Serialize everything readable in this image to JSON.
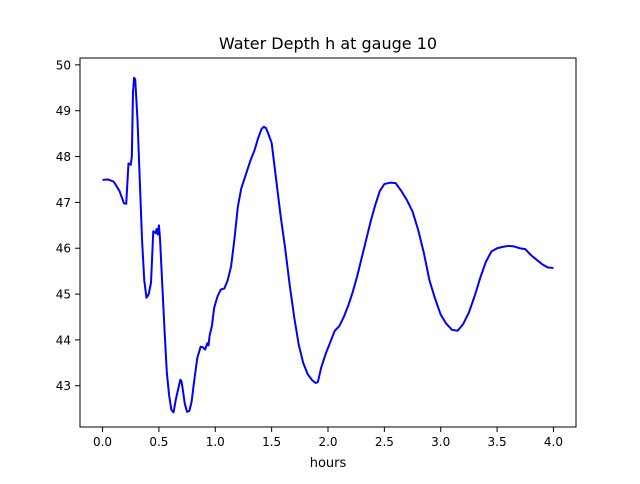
{
  "chart_data": {
    "type": "line",
    "title": "Water Depth h at gauge 10",
    "xlabel": "hours",
    "ylabel": "",
    "xlim": [
      -0.2,
      4.2
    ],
    "ylim": [
      42.1,
      50.15
    ],
    "x_ticks": [
      "0.0",
      "0.5",
      "1.0",
      "1.5",
      "2.0",
      "2.5",
      "3.0",
      "3.5",
      "4.0"
    ],
    "y_ticks": [
      "43",
      "44",
      "45",
      "46",
      "47",
      "48",
      "49",
      "50"
    ],
    "grid": false,
    "series": [
      {
        "color": "#0000ff",
        "points": [
          [
            0.0,
            47.49
          ],
          [
            0.05,
            47.5
          ],
          [
            0.1,
            47.45
          ],
          [
            0.15,
            47.25
          ],
          [
            0.19,
            46.98
          ],
          [
            0.21,
            46.97
          ],
          [
            0.23,
            47.85
          ],
          [
            0.25,
            47.82
          ],
          [
            0.26,
            48.0
          ],
          [
            0.27,
            49.4
          ],
          [
            0.28,
            49.72
          ],
          [
            0.29,
            49.68
          ],
          [
            0.31,
            48.8
          ],
          [
            0.33,
            47.5
          ],
          [
            0.35,
            46.2
          ],
          [
            0.37,
            45.3
          ],
          [
            0.39,
            44.92
          ],
          [
            0.41,
            45.0
          ],
          [
            0.43,
            45.25
          ],
          [
            0.45,
            46.37
          ],
          [
            0.47,
            46.33
          ],
          [
            0.48,
            46.42
          ],
          [
            0.49,
            46.3
          ],
          [
            0.5,
            46.5
          ],
          [
            0.51,
            46.2
          ],
          [
            0.53,
            45.2
          ],
          [
            0.55,
            44.2
          ],
          [
            0.57,
            43.3
          ],
          [
            0.59,
            42.8
          ],
          [
            0.61,
            42.48
          ],
          [
            0.63,
            42.42
          ],
          [
            0.65,
            42.7
          ],
          [
            0.67,
            42.92
          ],
          [
            0.69,
            43.13
          ],
          [
            0.7,
            43.1
          ],
          [
            0.71,
            42.95
          ],
          [
            0.73,
            42.6
          ],
          [
            0.75,
            42.43
          ],
          [
            0.77,
            42.45
          ],
          [
            0.79,
            42.65
          ],
          [
            0.81,
            43.05
          ],
          [
            0.84,
            43.6
          ],
          [
            0.87,
            43.85
          ],
          [
            0.89,
            43.84
          ],
          [
            0.91,
            43.79
          ],
          [
            0.93,
            43.93
          ],
          [
            0.94,
            43.88
          ],
          [
            0.95,
            44.1
          ],
          [
            0.97,
            44.3
          ],
          [
            0.99,
            44.7
          ],
          [
            1.02,
            44.95
          ],
          [
            1.05,
            45.1
          ],
          [
            1.08,
            45.12
          ],
          [
            1.11,
            45.3
          ],
          [
            1.14,
            45.6
          ],
          [
            1.17,
            46.2
          ],
          [
            1.2,
            46.9
          ],
          [
            1.23,
            47.3
          ],
          [
            1.27,
            47.6
          ],
          [
            1.31,
            47.9
          ],
          [
            1.35,
            48.15
          ],
          [
            1.38,
            48.4
          ],
          [
            1.41,
            48.6
          ],
          [
            1.43,
            48.65
          ],
          [
            1.45,
            48.62
          ],
          [
            1.47,
            48.5
          ],
          [
            1.5,
            48.3
          ],
          [
            1.52,
            47.9
          ],
          [
            1.55,
            47.3
          ],
          [
            1.58,
            46.7
          ],
          [
            1.62,
            46.0
          ],
          [
            1.66,
            45.2
          ],
          [
            1.7,
            44.5
          ],
          [
            1.74,
            43.9
          ],
          [
            1.78,
            43.5
          ],
          [
            1.82,
            43.25
          ],
          [
            1.86,
            43.12
          ],
          [
            1.89,
            43.06
          ],
          [
            1.91,
            43.08
          ],
          [
            1.94,
            43.4
          ],
          [
            1.98,
            43.7
          ],
          [
            2.02,
            43.95
          ],
          [
            2.06,
            44.2
          ],
          [
            2.1,
            44.3
          ],
          [
            2.14,
            44.5
          ],
          [
            2.18,
            44.75
          ],
          [
            2.22,
            45.05
          ],
          [
            2.26,
            45.4
          ],
          [
            2.3,
            45.8
          ],
          [
            2.34,
            46.2
          ],
          [
            2.38,
            46.6
          ],
          [
            2.42,
            46.95
          ],
          [
            2.46,
            47.25
          ],
          [
            2.5,
            47.4
          ],
          [
            2.55,
            47.43
          ],
          [
            2.6,
            47.42
          ],
          [
            2.65,
            47.25
          ],
          [
            2.7,
            47.05
          ],
          [
            2.75,
            46.8
          ],
          [
            2.8,
            46.4
          ],
          [
            2.85,
            45.9
          ],
          [
            2.9,
            45.3
          ],
          [
            2.95,
            44.9
          ],
          [
            3.0,
            44.55
          ],
          [
            3.05,
            44.35
          ],
          [
            3.1,
            44.22
          ],
          [
            3.15,
            44.2
          ],
          [
            3.2,
            44.35
          ],
          [
            3.25,
            44.6
          ],
          [
            3.3,
            44.95
          ],
          [
            3.35,
            45.35
          ],
          [
            3.4,
            45.7
          ],
          [
            3.45,
            45.93
          ],
          [
            3.5,
            46.0
          ],
          [
            3.55,
            46.03
          ],
          [
            3.6,
            46.05
          ],
          [
            3.65,
            46.04
          ],
          [
            3.7,
            46.0
          ],
          [
            3.75,
            45.98
          ],
          [
            3.8,
            45.85
          ],
          [
            3.85,
            45.75
          ],
          [
            3.9,
            45.65
          ],
          [
            3.95,
            45.58
          ],
          [
            4.0,
            45.57
          ]
        ]
      }
    ]
  }
}
